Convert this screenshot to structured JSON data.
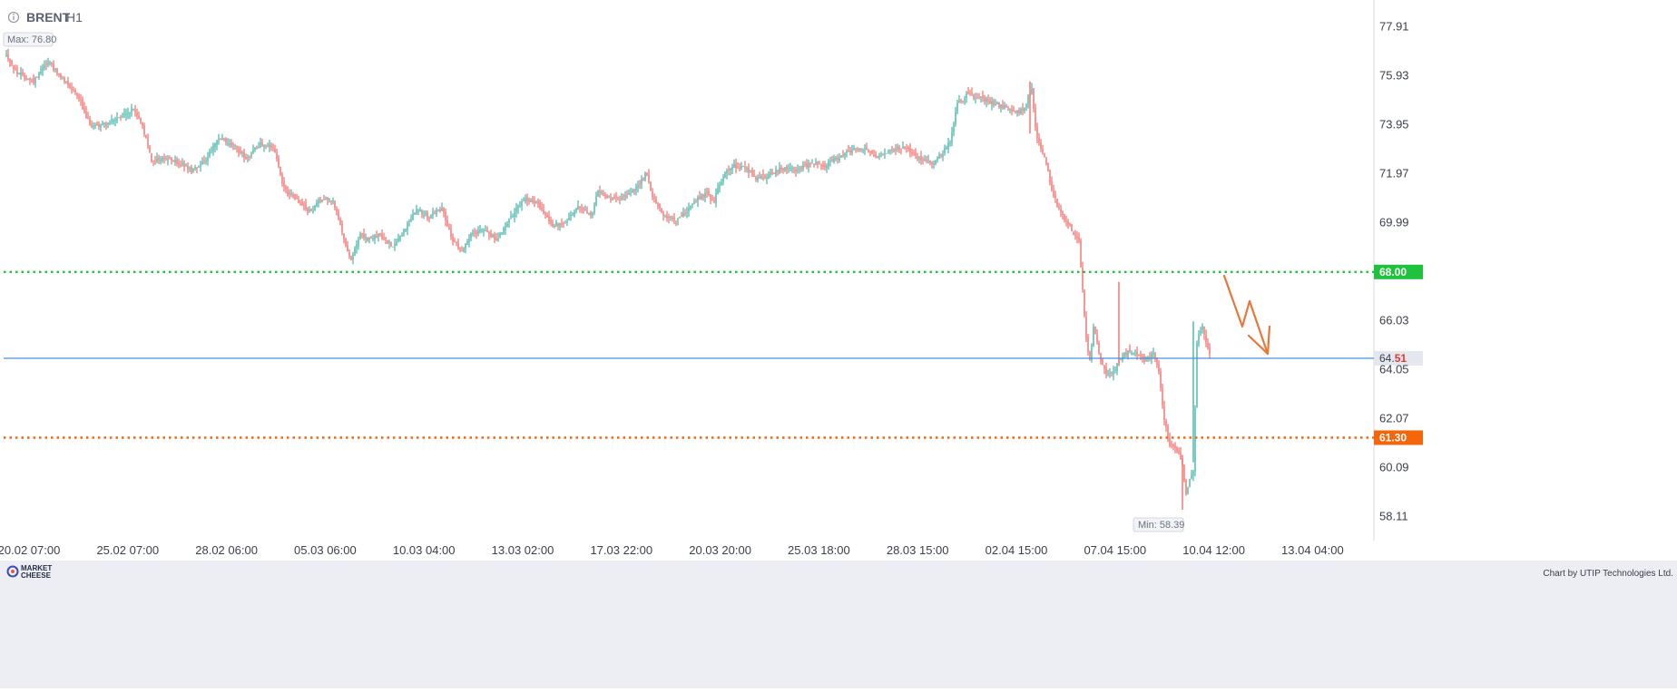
{
  "header": {
    "symbol": "BRENT",
    "timeframe": "H1",
    "info_icon": "info-circle-icon"
  },
  "footer": {
    "logo_line1": "MARKET",
    "logo_line2": "CHEESE",
    "credit": "Chart by UTIP Technologies Ltd."
  },
  "annotations": {
    "max_label": "Max: 76.80",
    "min_label": "Min: 58.39",
    "current_price_main": "64.",
    "current_price_tail": "51",
    "current_price": 64.51
  },
  "levels": [
    {
      "name": "resistance",
      "value": 68.0,
      "label": "68.00",
      "color": "#1ec23c",
      "style": "dotted"
    },
    {
      "name": "support",
      "value": 61.3,
      "label": "61.30",
      "color": "#f5660a",
      "style": "dotted"
    }
  ],
  "colors": {
    "bull": "#26a69a",
    "bear": "#ef5350",
    "current_line": "#4a90d9",
    "arrow": "#e8773a",
    "footer_bg": "#eceef3"
  },
  "chart_data": {
    "type": "candlestick",
    "symbol": "BRENT",
    "timeframe": "H1",
    "y_ticks": [
      "77.91",
      "75.93",
      "73.95",
      "71.97",
      "69.99",
      "66.03",
      "64.05",
      "62.07",
      "60.09",
      "58.11"
    ],
    "ylim": [
      57.3,
      78.6
    ],
    "x_ticks": [
      "20.02 07:00",
      "25.02 07:00",
      "28.02 06:00",
      "05.03 06:00",
      "10.03 04:00",
      "13.03 02:00",
      "17.03 22:00",
      "20.03 20:00",
      "25.03 18:00",
      "28.03 15:00",
      "02.04 15:00",
      "07.04 15:00",
      "10.04 12:00",
      "13.04 04:00"
    ],
    "max": 76.8,
    "min": 58.39,
    "last": 64.51,
    "price_path": [
      [
        0,
        76.8
      ],
      [
        10,
        76.1
      ],
      [
        20,
        75.9
      ],
      [
        30,
        75.7
      ],
      [
        40,
        76.3
      ],
      [
        48,
        76.5
      ],
      [
        58,
        75.9
      ],
      [
        68,
        75.6
      ],
      [
        80,
        75.1
      ],
      [
        88,
        74.2
      ],
      [
        95,
        73.9
      ],
      [
        110,
        74.0
      ],
      [
        125,
        74.2
      ],
      [
        140,
        74.6
      ],
      [
        150,
        73.9
      ],
      [
        160,
        72.5
      ],
      [
        175,
        72.6
      ],
      [
        190,
        72.4
      ],
      [
        205,
        72.1
      ],
      [
        220,
        72.6
      ],
      [
        235,
        73.4
      ],
      [
        250,
        73.1
      ],
      [
        265,
        72.6
      ],
      [
        280,
        73.2
      ],
      [
        295,
        73.0
      ],
      [
        305,
        71.4
      ],
      [
        320,
        70.9
      ],
      [
        335,
        70.4
      ],
      [
        348,
        71.0
      ],
      [
        360,
        70.9
      ],
      [
        372,
        69.3
      ],
      [
        380,
        68.5
      ],
      [
        390,
        69.5
      ],
      [
        400,
        69.3
      ],
      [
        412,
        69.5
      ],
      [
        425,
        69.0
      ],
      [
        440,
        69.8
      ],
      [
        452,
        70.6
      ],
      [
        465,
        70.2
      ],
      [
        480,
        70.6
      ],
      [
        492,
        69.2
      ],
      [
        502,
        68.9
      ],
      [
        512,
        69.5
      ],
      [
        525,
        69.8
      ],
      [
        540,
        69.3
      ],
      [
        555,
        70.2
      ],
      [
        570,
        70.9
      ],
      [
        585,
        70.8
      ],
      [
        600,
        69.9
      ],
      [
        615,
        70.0
      ],
      [
        630,
        70.6
      ],
      [
        645,
        70.3
      ],
      [
        652,
        71.3
      ],
      [
        665,
        70.9
      ],
      [
        680,
        71.0
      ],
      [
        695,
        71.4
      ],
      [
        705,
        72.0
      ],
      [
        712,
        71.0
      ],
      [
        725,
        70.3
      ],
      [
        740,
        70.1
      ],
      [
        755,
        70.7
      ],
      [
        770,
        71.2
      ],
      [
        780,
        70.9
      ],
      [
        790,
        71.9
      ],
      [
        800,
        72.3
      ],
      [
        815,
        72.2
      ],
      [
        825,
        71.8
      ],
      [
        840,
        71.9
      ],
      [
        855,
        72.2
      ],
      [
        870,
        72.1
      ],
      [
        885,
        72.4
      ],
      [
        900,
        72.3
      ],
      [
        915,
        72.6
      ],
      [
        930,
        72.9
      ],
      [
        945,
        73.0
      ],
      [
        960,
        72.7
      ],
      [
        975,
        72.9
      ],
      [
        990,
        73.0
      ],
      [
        1005,
        72.6
      ],
      [
        1020,
        72.4
      ],
      [
        1030,
        72.7
      ],
      [
        1040,
        73.3
      ],
      [
        1048,
        74.8
      ],
      [
        1060,
        75.2
      ],
      [
        1075,
        75.0
      ],
      [
        1090,
        74.8
      ],
      [
        1100,
        74.7
      ],
      [
        1112,
        74.4
      ],
      [
        1122,
        74.6
      ],
      [
        1130,
        75.5
      ],
      [
        1135,
        73.5
      ],
      [
        1145,
        72.6
      ],
      [
        1152,
        71.3
      ],
      [
        1160,
        70.5
      ],
      [
        1172,
        69.8
      ],
      [
        1182,
        69.2
      ],
      [
        1186,
        67.3
      ],
      [
        1190,
        65.3
      ],
      [
        1194,
        64.4
      ],
      [
        1198,
        65.8
      ],
      [
        1205,
        64.5
      ],
      [
        1212,
        63.9
      ],
      [
        1220,
        64.0
      ],
      [
        1228,
        64.5
      ],
      [
        1236,
        64.8
      ],
      [
        1246,
        64.7
      ],
      [
        1256,
        64.4
      ],
      [
        1264,
        64.8
      ],
      [
        1270,
        64.0
      ],
      [
        1276,
        62.0
      ],
      [
        1282,
        61.0
      ],
      [
        1290,
        60.8
      ],
      [
        1296,
        60.2
      ],
      [
        1300,
        59.0
      ],
      [
        1304,
        59.6
      ],
      [
        1308,
        60.0
      ],
      [
        1312,
        65.2
      ],
      [
        1318,
        65.9
      ],
      [
        1324,
        64.9
      ],
      [
        1327,
        64.51
      ]
    ]
  }
}
